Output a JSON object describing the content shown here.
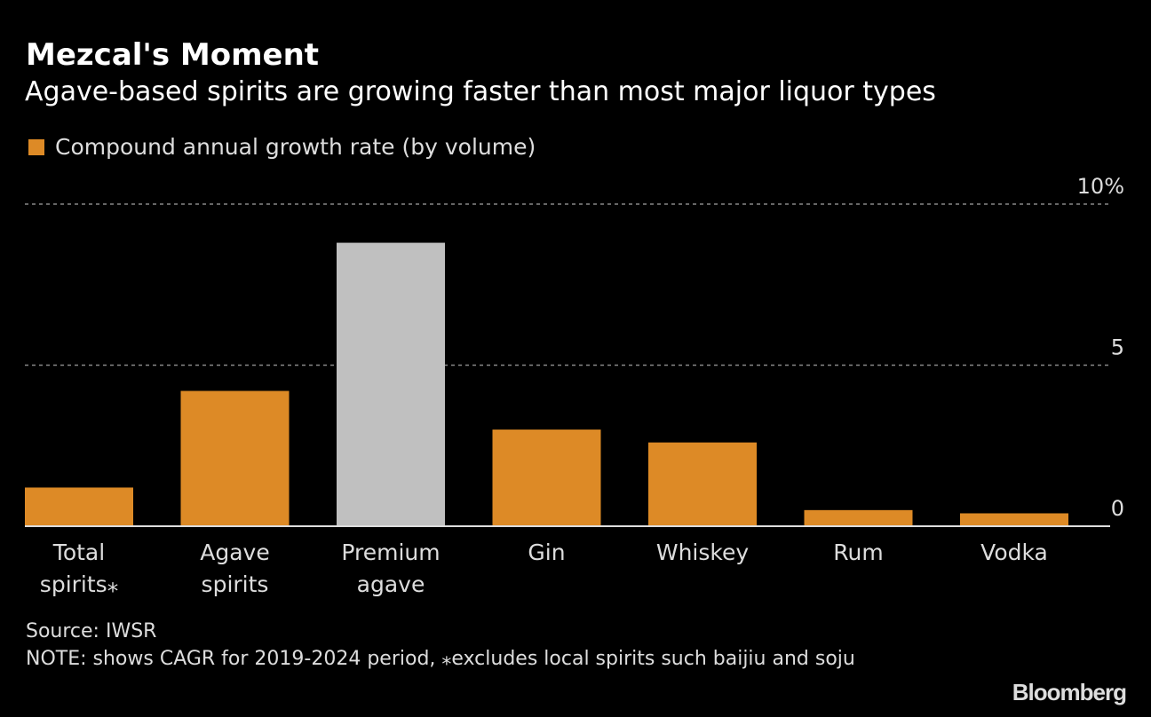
{
  "header": {
    "title": "Mezcal's Moment",
    "subtitle": "Agave-based spirits are growing faster than most major liquor types"
  },
  "legend": {
    "label": "Compound annual growth rate (by volume)",
    "color": "#dd8a26"
  },
  "footer": {
    "source": "Source: IWSR",
    "note": "NOTE: shows CAGR for 2019-2024 period, ⁎excludes local spirits such baijiu and soju"
  },
  "brand": "Bloomberg",
  "colors": {
    "bar_default": "#dd8a26",
    "bar_highlight": "#c0c0c0",
    "background": "#000000",
    "gridline": "#888888",
    "baseline": "#dddddd"
  },
  "chart_data": {
    "type": "bar",
    "title": "Mezcal's Moment",
    "subtitle": "Agave-based spirits are growing faster than most major liquor types",
    "categories": [
      [
        "Total",
        "spirits⁎"
      ],
      [
        "Agave",
        "spirits"
      ],
      [
        "Premium",
        "agave"
      ],
      [
        "Gin"
      ],
      [
        "Whiskey"
      ],
      [
        "Rum"
      ],
      [
        "Vodka"
      ]
    ],
    "values": [
      1.2,
      4.2,
      8.8,
      3.0,
      2.6,
      0.5,
      0.4
    ],
    "highlight": [
      false,
      false,
      true,
      false,
      false,
      false,
      false
    ],
    "series": [
      {
        "name": "Compound annual growth rate (by volume)",
        "values": [
          1.2,
          4.2,
          8.8,
          3.0,
          2.6,
          0.5,
          0.4
        ]
      }
    ],
    "xlabel": "",
    "ylabel": "",
    "ylim": [
      0,
      10
    ],
    "yticks": [
      {
        "value": 0,
        "label": "0"
      },
      {
        "value": 5,
        "label": "5"
      },
      {
        "value": 10,
        "label": "10%"
      }
    ],
    "grid": true,
    "y_axis_side": "right",
    "legend_position": "top-left"
  }
}
